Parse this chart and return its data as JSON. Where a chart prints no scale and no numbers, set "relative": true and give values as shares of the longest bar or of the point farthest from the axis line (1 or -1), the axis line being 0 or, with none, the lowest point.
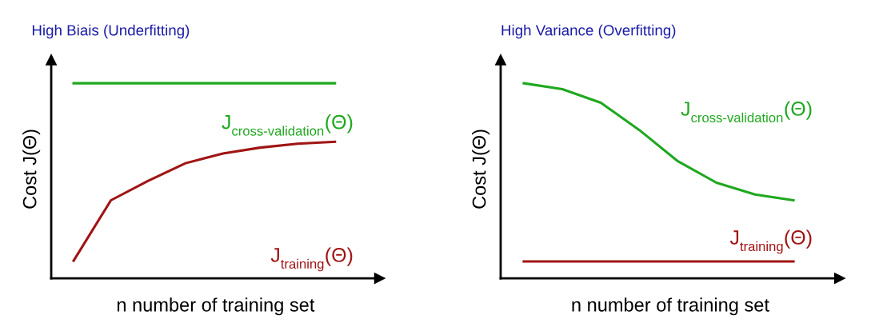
{
  "chart_data": [
    {
      "type": "line",
      "title": "High Biais (Underfitting)",
      "xlabel": "n number of training set",
      "ylabel": "Cost J(Θ)",
      "relative": true,
      "legend": false,
      "grid": false,
      "marker": "none",
      "line_style": "solid",
      "categories": [
        null,
        null,
        null,
        null,
        null,
        null,
        null,
        null
      ],
      "series": [
        {
          "name": "J$_{cross-validation}$(Θ)",
          "color": "#1fa81f",
          "values": [
            1.0,
            1.0,
            1.0,
            1.0,
            1.0,
            1.0,
            1.0,
            1.0
          ]
        },
        {
          "name": "J$_{training}$(Θ)",
          "color": "#a01414",
          "values": [
            0.09,
            0.4,
            0.5,
            0.59,
            0.64,
            0.67,
            0.69,
            0.7
          ]
        }
      ]
    },
    {
      "type": "line",
      "title": "High Variance (Overfitting)",
      "xlabel": "n number of training set",
      "ylabel": "Cost J(Θ)",
      "relative": true,
      "legend": false,
      "grid": false,
      "marker": "none",
      "line_style": "solid",
      "categories": [
        null,
        null,
        null,
        null,
        null,
        null,
        null,
        null
      ],
      "series": [
        {
          "name": "J$_{cross-validation}$(Θ)",
          "color": "#1fa81f",
          "values": [
            1.0,
            0.97,
            0.9,
            0.76,
            0.6,
            0.49,
            0.43,
            0.4
          ]
        },
        {
          "name": "J$_{training}$(Θ)",
          "color": "#a01414",
          "values": [
            0.086,
            0.086,
            0.086,
            0.086,
            0.086,
            0.086,
            0.086,
            0.086
          ]
        }
      ]
    }
  ]
}
